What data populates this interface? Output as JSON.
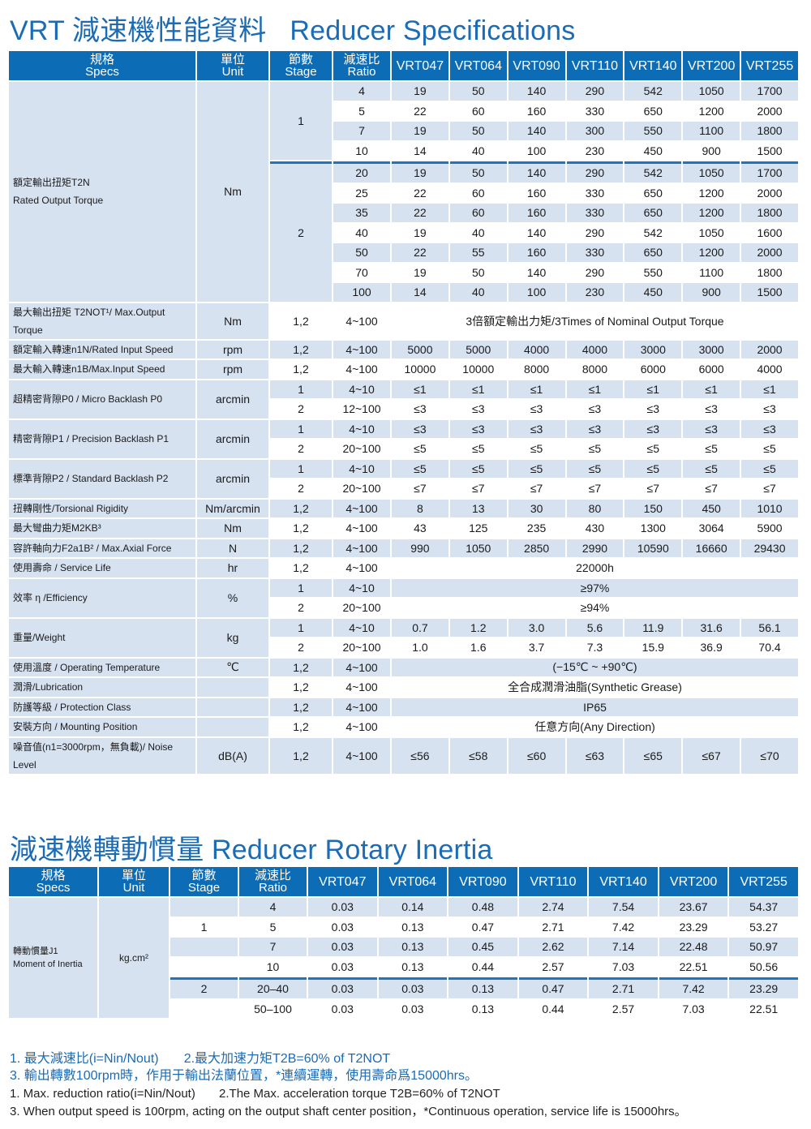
{
  "spec_table": {
    "title": "VRT 減速機性能資料   Reducer Specifications",
    "headers": {
      "spec": [
        "規格",
        "Specs"
      ],
      "unit": [
        "單位",
        "Unit"
      ],
      "stage": [
        "節數",
        "Stage"
      ],
      "ratio": [
        "減速比",
        "Ratio"
      ]
    },
    "models": [
      "VRT047",
      "VRT064",
      "VRT090",
      "VRT110",
      "VRT140",
      "VRT200",
      "VRT255"
    ],
    "groups": [
      {
        "spec": "額定輸出扭矩T2N\nRated Output Torque",
        "unit": "Nm",
        "stages": [
          {
            "stage": "1",
            "rows": [
              {
                "ratio": "4",
                "values": [
                  "19",
                  "50",
                  "140",
                  "290",
                  "542",
                  "1050",
                  "1700"
                ]
              },
              {
                "ratio": "5",
                "values": [
                  "22",
                  "60",
                  "160",
                  "330",
                  "650",
                  "1200",
                  "2000"
                ]
              },
              {
                "ratio": "7",
                "values": [
                  "19",
                  "50",
                  "140",
                  "300",
                  "550",
                  "1100",
                  "1800"
                ]
              },
              {
                "ratio": "10",
                "values": [
                  "14",
                  "40",
                  "100",
                  "230",
                  "450",
                  "900",
                  "1500"
                ]
              }
            ]
          },
          {
            "stage": "2",
            "rows": [
              {
                "ratio": "20",
                "values": [
                  "19",
                  "50",
                  "140",
                  "290",
                  "542",
                  "1050",
                  "1700"
                ]
              },
              {
                "ratio": "25",
                "values": [
                  "22",
                  "60",
                  "160",
                  "330",
                  "650",
                  "1200",
                  "2000"
                ]
              },
              {
                "ratio": "35",
                "values": [
                  "22",
                  "60",
                  "160",
                  "330",
                  "650",
                  "1200",
                  "1800"
                ]
              },
              {
                "ratio": "40",
                "values": [
                  "19",
                  "40",
                  "140",
                  "290",
                  "542",
                  "1050",
                  "1600"
                ]
              },
              {
                "ratio": "50",
                "values": [
                  "22",
                  "55",
                  "160",
                  "330",
                  "650",
                  "1200",
                  "2000"
                ]
              },
              {
                "ratio": "70",
                "values": [
                  "19",
                  "50",
                  "140",
                  "290",
                  "550",
                  "1100",
                  "1800"
                ]
              },
              {
                "ratio": "100",
                "values": [
                  "14",
                  "40",
                  "100",
                  "230",
                  "450",
                  "900",
                  "1500"
                ]
              }
            ]
          }
        ]
      },
      {
        "spec": "最大輸出扭矩 T2NOT¹/ Max.Output Torque",
        "unit": "Nm",
        "stages": [
          {
            "stage": "1,2",
            "rows": [
              {
                "ratio": "4~100",
                "merged": "3倍額定輸出力矩/3Times of Nominal Output Torque"
              }
            ]
          }
        ]
      },
      {
        "spec": "額定輸入轉速n1N/Rated Input Speed",
        "unit": "rpm",
        "stages": [
          {
            "stage": "1,2",
            "rows": [
              {
                "ratio": "4~100",
                "values": [
                  "5000",
                  "5000",
                  "4000",
                  "4000",
                  "3000",
                  "3000",
                  "2000"
                ]
              }
            ]
          }
        ]
      },
      {
        "spec": "最大輸入轉速n1B/Max.Input Speed",
        "unit": "rpm",
        "stages": [
          {
            "stage": "1,2",
            "rows": [
              {
                "ratio": "4~100",
                "values": [
                  "10000",
                  "10000",
                  "8000",
                  "8000",
                  "6000",
                  "6000",
                  "4000"
                ]
              }
            ]
          }
        ]
      },
      {
        "spec": "超精密背隙P0 / Micro Backlash P0",
        "unit": "arcmin",
        "stages": [
          {
            "stage": "1",
            "rows": [
              {
                "ratio": "4~10",
                "values": [
                  "≤1",
                  "≤1",
                  "≤1",
                  "≤1",
                  "≤1",
                  "≤1",
                  "≤1"
                ]
              }
            ]
          },
          {
            "stage": "2",
            "rows": [
              {
                "ratio": "12~100",
                "values": [
                  "≤3",
                  "≤3",
                  "≤3",
                  "≤3",
                  "≤3",
                  "≤3",
                  "≤3"
                ]
              }
            ]
          }
        ]
      },
      {
        "spec": "精密背隙P1 / Precision Backlash P1",
        "unit": "arcmin",
        "stages": [
          {
            "stage": "1",
            "rows": [
              {
                "ratio": "4~10",
                "values": [
                  "≤3",
                  "≤3",
                  "≤3",
                  "≤3",
                  "≤3",
                  "≤3",
                  "≤3"
                ]
              }
            ]
          },
          {
            "stage": "2",
            "rows": [
              {
                "ratio": "20~100",
                "values": [
                  "≤5",
                  "≤5",
                  "≤5",
                  "≤5",
                  "≤5",
                  "≤5",
                  "≤5"
                ]
              }
            ]
          }
        ]
      },
      {
        "spec": "標準背隙P2 / Standard Backlash P2",
        "unit": "arcmin",
        "stages": [
          {
            "stage": "1",
            "rows": [
              {
                "ratio": "4~10",
                "values": [
                  "≤5",
                  "≤5",
                  "≤5",
                  "≤5",
                  "≤5",
                  "≤5",
                  "≤5"
                ]
              }
            ]
          },
          {
            "stage": "2",
            "rows": [
              {
                "ratio": "20~100",
                "values": [
                  "≤7",
                  "≤7",
                  "≤7",
                  "≤7",
                  "≤7",
                  "≤7",
                  "≤7"
                ]
              }
            ]
          }
        ]
      },
      {
        "spec": "扭轉剛性/Torsional Rigidity",
        "unit": "Nm/arcmin",
        "stages": [
          {
            "stage": "1,2",
            "rows": [
              {
                "ratio": "4~100",
                "values": [
                  "8",
                  "13",
                  "30",
                  "80",
                  "150",
                  "450",
                  "1010"
                ]
              }
            ]
          }
        ]
      },
      {
        "spec": "最大彎曲力矩M2KB³",
        "unit": "Nm",
        "stages": [
          {
            "stage": "1,2",
            "rows": [
              {
                "ratio": "4~100",
                "values": [
                  "43",
                  "125",
                  "235",
                  "430",
                  "1300",
                  "3064",
                  "5900"
                ]
              }
            ]
          }
        ]
      },
      {
        "spec": "容許軸向力F2a1B² / Max.Axial Force",
        "unit": "N",
        "stages": [
          {
            "stage": "1,2",
            "rows": [
              {
                "ratio": "4~100",
                "values": [
                  "990",
                  "1050",
                  "2850",
                  "2990",
                  "10590",
                  "16660",
                  "29430"
                ]
              }
            ]
          }
        ]
      },
      {
        "spec": "使用壽命 / Service Life",
        "unit": "hr",
        "stages": [
          {
            "stage": "1,2",
            "rows": [
              {
                "ratio": "4~100",
                "merged": "22000h"
              }
            ]
          }
        ]
      },
      {
        "spec": "效率 η /Efficiency",
        "unit": "%",
        "stages": [
          {
            "stage": "1",
            "rows": [
              {
                "ratio": "4~10",
                "merged": "≥97%"
              }
            ]
          },
          {
            "stage": "2",
            "rows": [
              {
                "ratio": "20~100",
                "merged": "≥94%"
              }
            ]
          }
        ]
      },
      {
        "spec": "重量/Weight",
        "unit": "kg",
        "stages": [
          {
            "stage": "1",
            "rows": [
              {
                "ratio": "4~10",
                "values": [
                  "0.7",
                  "1.2",
                  "3.0",
                  "5.6",
                  "11.9",
                  "31.6",
                  "56.1"
                ]
              }
            ]
          },
          {
            "stage": "2",
            "rows": [
              {
                "ratio": "20~100",
                "values": [
                  "1.0",
                  "1.6",
                  "3.7",
                  "7.3",
                  "15.9",
                  "36.9",
                  "70.4"
                ]
              }
            ]
          }
        ]
      },
      {
        "spec": "使用溫度 / Operating Temperature",
        "unit": "℃",
        "stages": [
          {
            "stage": "1,2",
            "rows": [
              {
                "ratio": "4~100",
                "merged": "(−15℃ ~ +90℃)"
              }
            ]
          }
        ]
      },
      {
        "spec": "潤滑/Lubrication",
        "unit": "",
        "stages": [
          {
            "stage": "1,2",
            "rows": [
              {
                "ratio": "4~100",
                "merged": "全合成潤滑油脂(Synthetic Grease)"
              }
            ]
          }
        ]
      },
      {
        "spec": "防護等級 / Protection Class",
        "unit": "",
        "stages": [
          {
            "stage": "1,2",
            "rows": [
              {
                "ratio": "4~100",
                "merged": "IP65"
              }
            ]
          }
        ]
      },
      {
        "spec": "安裝方向 / Mounting Position",
        "unit": "",
        "stages": [
          {
            "stage": "1,2",
            "rows": [
              {
                "ratio": "4~100",
                "merged": "任意方向(Any Direction)"
              }
            ]
          }
        ]
      },
      {
        "spec": "噪音值(n1=3000rpm，無負載)/ Noise Level",
        "unit": "dB(A)",
        "stages": [
          {
            "stage": "1,2",
            "rows": [
              {
                "ratio": "4~100",
                "values": [
                  "≤56",
                  "≤58",
                  "≤60",
                  "≤63",
                  "≤65",
                  "≤67",
                  "≤70"
                ]
              }
            ]
          }
        ]
      }
    ]
  },
  "inertia_table": {
    "title": "減速機轉動慣量 Reducer Rotary Inertia",
    "headers": {
      "spec": [
        "規格",
        "Specs"
      ],
      "unit": [
        "單位",
        "Unit"
      ],
      "stage": [
        "節數",
        "Stage"
      ],
      "ratio": [
        "減速比",
        "Ratio"
      ]
    },
    "models": [
      "VRT047",
      "VRT064",
      "VRT090",
      "VRT110",
      "VRT140",
      "VRT200",
      "VRT255"
    ],
    "spec": "轉動慣量J1\nMoment of Inertia",
    "unit": "kg.cm²",
    "stages": [
      {
        "stage": "1",
        "rows": [
          {
            "ratio": "4",
            "values": [
              "0.03",
              "0.14",
              "0.48",
              "2.74",
              "7.54",
              "23.67",
              "54.37"
            ]
          },
          {
            "ratio": "5",
            "values": [
              "0.03",
              "0.13",
              "0.47",
              "2.71",
              "7.42",
              "23.29",
              "53.27"
            ]
          },
          {
            "ratio": "7",
            "values": [
              "0.03",
              "0.13",
              "0.45",
              "2.62",
              "7.14",
              "22.48",
              "50.97"
            ]
          },
          {
            "ratio": "10",
            "values": [
              "0.03",
              "0.13",
              "0.44",
              "2.57",
              "7.03",
              "22.51",
              "50.56"
            ]
          }
        ]
      },
      {
        "stage": "2",
        "rows": [
          {
            "ratio": "20–40",
            "values": [
              "0.03",
              "0.03",
              "0.13",
              "0.47",
              "2.71",
              "7.42",
              "23.29"
            ]
          },
          {
            "ratio": "50–100",
            "values": [
              "0.03",
              "0.03",
              "0.13",
              "0.44",
              "2.57",
              "7.03",
              "22.51"
            ]
          }
        ]
      }
    ]
  },
  "notes": {
    "cn_line1": "1. 最大減速比(i=Nin/Nout)       2.最大加速力矩T2B=60% of T2NOT",
    "cn_line2": "3. 輸出轉數100rpm時，作用于輸出法蘭位置，*連續運轉，使用壽命爲15000hrs。",
    "en_line1": "1. Max. reduction ratio(i=Nin/Nout)       2.The Max. acceleration torque T2B=60% of T2NOT",
    "en_line2": "3. When output speed is 100rpm, acting on the output shaft center position，*Continuous operation, service life is 15000hrs。"
  },
  "colors": {
    "header": "#0c6cb5",
    "stripe": "#d7e2f1",
    "title": "#1b6bb5"
  }
}
